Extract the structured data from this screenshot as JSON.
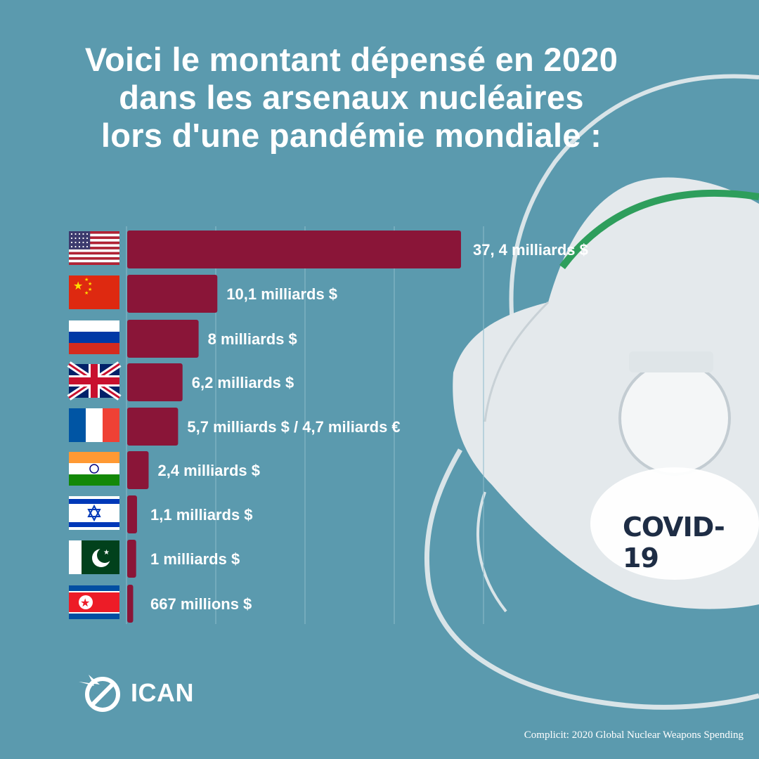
{
  "title": {
    "line1": "Voici le montant dépensé en 2020",
    "line2": "dans les arsenaux nucléaires",
    "line3": "lors d'une pandémie mondiale :"
  },
  "mask_label": "COVID-19",
  "logo_text": "ICAN",
  "source": "Complicit: 2020 Global Nuclear Weapons Spending",
  "colors": {
    "background": "#5b9aae",
    "bar": "#8a1538",
    "text": "#ffffff"
  },
  "chart_data": {
    "type": "bar",
    "orientation": "horizontal",
    "categories": [
      "États-Unis",
      "Chine",
      "Russie",
      "Royaume-Uni",
      "France",
      "Inde",
      "Israël",
      "Pakistan",
      "Corée du Nord"
    ],
    "category_icons": [
      "us-flag-icon",
      "china-flag-icon",
      "russia-flag-icon",
      "uk-flag-icon",
      "france-flag-icon",
      "india-flag-icon",
      "israel-flag-icon",
      "pakistan-flag-icon",
      "north-korea-flag-icon"
    ],
    "values": [
      37.4,
      10.1,
      8,
      6.2,
      5.7,
      2.4,
      1.1,
      1,
      0.667
    ],
    "unit": "milliards $",
    "data_labels": [
      "37, 4 milliards $",
      "10,1 milliards $",
      "8 milliards $",
      "6,2 milliards $",
      "5,7 milliards $ / 4,7 miliards €",
      "2,4 milliards $",
      "1,1  milliards $",
      "1 milliards $",
      "667 millions $"
    ],
    "xlim": [
      0,
      40
    ],
    "grid": true
  }
}
